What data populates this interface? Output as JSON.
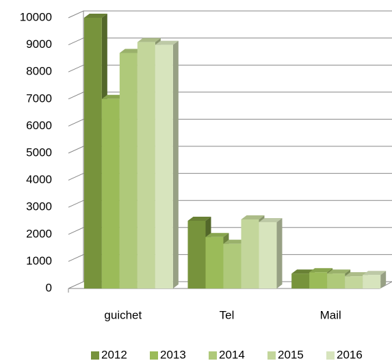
{
  "chart_data": {
    "type": "bar3d",
    "categories": [
      "guichet",
      "Tel",
      "Mail"
    ],
    "series": [
      {
        "name": "2012",
        "color": "#77933c",
        "values": [
          10000,
          2500,
          550
        ]
      },
      {
        "name": "2013",
        "color": "#9bbb59",
        "values": [
          7000,
          1900,
          600
        ]
      },
      {
        "name": "2014",
        "color": "#afc97a",
        "values": [
          8700,
          1650,
          550
        ]
      },
      {
        "name": "2015",
        "color": "#c3d69b",
        "values": [
          9100,
          2550,
          450
        ]
      },
      {
        "name": "2016",
        "color": "#d7e4bd",
        "values": [
          9000,
          2450,
          500
        ]
      }
    ],
    "ylim": [
      0,
      10000
    ],
    "yticks": [
      0,
      1000,
      2000,
      3000,
      4000,
      5000,
      6000,
      7000,
      8000,
      9000,
      10000
    ],
    "grid": true,
    "legend": "bottom"
  }
}
